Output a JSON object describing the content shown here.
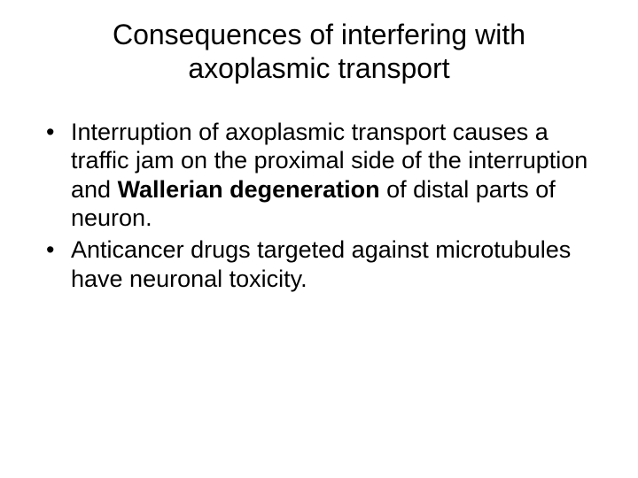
{
  "slide": {
    "title": "Consequences of interfering with axoplasmic transport",
    "bullets": [
      {
        "parts": [
          {
            "text": "Interruption of axoplasmic transport causes a traffic jam on the proximal side of the interruption and  ",
            "bold": false
          },
          {
            "text": "Wallerian degeneration",
            "bold": true
          },
          {
            "text": " of distal parts of neuron.",
            "bold": false
          }
        ]
      },
      {
        "parts": [
          {
            "text": "Anticancer drugs targeted against microtubules have neuronal toxicity.",
            "bold": false
          }
        ]
      }
    ],
    "styles": {
      "background_color": "#ffffff",
      "text_color": "#000000",
      "title_fontsize": 32,
      "body_fontsize": 27,
      "font_family": "Arial"
    }
  }
}
